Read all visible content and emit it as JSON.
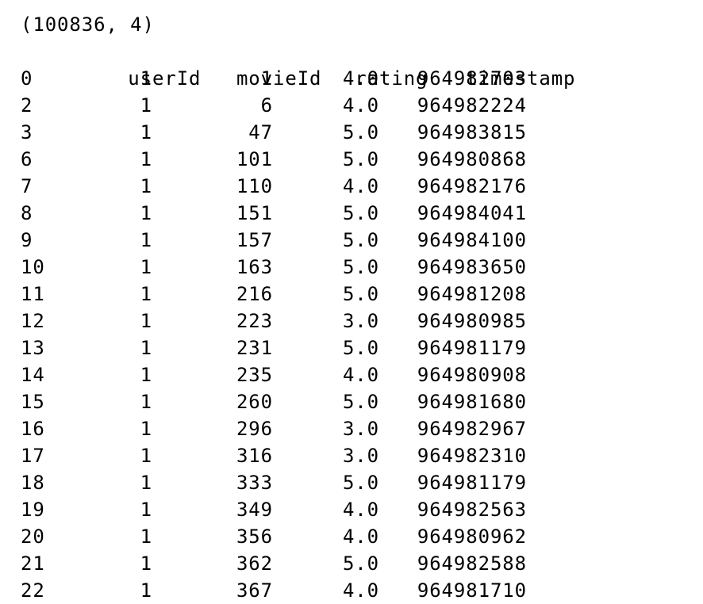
{
  "output": {
    "shape": "(100836, 4)",
    "columns": [
      "userId",
      "movieId",
      "rating",
      "timestamp"
    ],
    "rows": [
      {
        "index": "0",
        "userId": "1",
        "movieId": "1",
        "rating": "4.0",
        "timestamp": "964982703"
      },
      {
        "index": "2",
        "userId": "1",
        "movieId": "6",
        "rating": "4.0",
        "timestamp": "964982224"
      },
      {
        "index": "3",
        "userId": "1",
        "movieId": "47",
        "rating": "5.0",
        "timestamp": "964983815"
      },
      {
        "index": "6",
        "userId": "1",
        "movieId": "101",
        "rating": "5.0",
        "timestamp": "964980868"
      },
      {
        "index": "7",
        "userId": "1",
        "movieId": "110",
        "rating": "4.0",
        "timestamp": "964982176"
      },
      {
        "index": "8",
        "userId": "1",
        "movieId": "151",
        "rating": "5.0",
        "timestamp": "964984041"
      },
      {
        "index": "9",
        "userId": "1",
        "movieId": "157",
        "rating": "5.0",
        "timestamp": "964984100"
      },
      {
        "index": "10",
        "userId": "1",
        "movieId": "163",
        "rating": "5.0",
        "timestamp": "964983650"
      },
      {
        "index": "11",
        "userId": "1",
        "movieId": "216",
        "rating": "5.0",
        "timestamp": "964981208"
      },
      {
        "index": "12",
        "userId": "1",
        "movieId": "223",
        "rating": "3.0",
        "timestamp": "964980985"
      },
      {
        "index": "13",
        "userId": "1",
        "movieId": "231",
        "rating": "5.0",
        "timestamp": "964981179"
      },
      {
        "index": "14",
        "userId": "1",
        "movieId": "235",
        "rating": "4.0",
        "timestamp": "964980908"
      },
      {
        "index": "15",
        "userId": "1",
        "movieId": "260",
        "rating": "5.0",
        "timestamp": "964981680"
      },
      {
        "index": "16",
        "userId": "1",
        "movieId": "296",
        "rating": "3.0",
        "timestamp": "964982967"
      },
      {
        "index": "17",
        "userId": "1",
        "movieId": "316",
        "rating": "3.0",
        "timestamp": "964982310"
      },
      {
        "index": "18",
        "userId": "1",
        "movieId": "333",
        "rating": "5.0",
        "timestamp": "964981179"
      },
      {
        "index": "19",
        "userId": "1",
        "movieId": "349",
        "rating": "4.0",
        "timestamp": "964982563"
      },
      {
        "index": "20",
        "userId": "1",
        "movieId": "356",
        "rating": "4.0",
        "timestamp": "964980962"
      },
      {
        "index": "21",
        "userId": "1",
        "movieId": "362",
        "rating": "5.0",
        "timestamp": "964982588"
      },
      {
        "index": "22",
        "userId": "1",
        "movieId": "367",
        "rating": "4.0",
        "timestamp": "964981710"
      }
    ]
  }
}
